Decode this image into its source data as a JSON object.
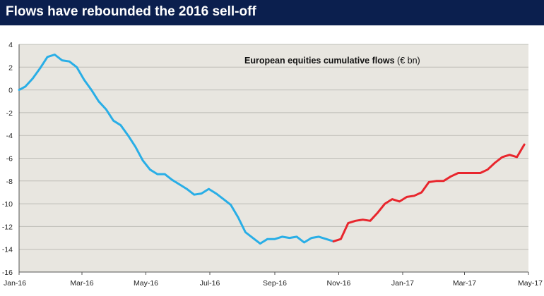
{
  "header": {
    "title": "Flows have rebounded the 2016 sell-off"
  },
  "colors": {
    "header_bg": "#0b1f4e",
    "plot_bg": "#e8e6e0",
    "gridline": "#bdbcb6",
    "series_2016": "#29aee6",
    "series_recovery": "#e8262d"
  },
  "chart_data": {
    "type": "line",
    "title": "",
    "xlabel": "",
    "ylabel": "",
    "annotation": {
      "bold": "European equities cumulative flows",
      "normal": " (€ bn)"
    },
    "ylim": [
      -16,
      4
    ],
    "yticks": [
      4,
      2,
      0,
      -2,
      -4,
      -6,
      -8,
      -10,
      -12,
      -14,
      -16
    ],
    "xlim": [
      "2016-01-01",
      "2017-05-01"
    ],
    "xticks": [
      {
        "date": "2016-01-01",
        "label": "Jan-16"
      },
      {
        "date": "2016-03-01",
        "label": "Mar-16"
      },
      {
        "date": "2016-05-01",
        "label": "May-16"
      },
      {
        "date": "2016-07-01",
        "label": "Jul-16"
      },
      {
        "date": "2016-09-01",
        "label": "Sep-16"
      },
      {
        "date": "2016-11-01",
        "label": "Nov-16"
      },
      {
        "date": "2017-01-01",
        "label": "Jan-17"
      },
      {
        "date": "2017-03-01",
        "label": "Mar-17"
      },
      {
        "date": "2017-05-01",
        "label": "May-17"
      }
    ],
    "grid": true,
    "series": [
      {
        "color": "#29aee6",
        "points": [
          [
            "2016-01-01",
            0.0
          ],
          [
            "2016-01-07",
            0.3
          ],
          [
            "2016-01-14",
            1.0
          ],
          [
            "2016-01-21",
            1.9
          ],
          [
            "2016-01-28",
            2.9
          ],
          [
            "2016-02-04",
            3.1
          ],
          [
            "2016-02-11",
            2.6
          ],
          [
            "2016-02-18",
            2.5
          ],
          [
            "2016-02-25",
            2.0
          ],
          [
            "2016-03-03",
            0.9
          ],
          [
            "2016-03-10",
            0.0
          ],
          [
            "2016-03-17",
            -1.0
          ],
          [
            "2016-03-24",
            -1.7
          ],
          [
            "2016-03-31",
            -2.7
          ],
          [
            "2016-04-07",
            -3.1
          ],
          [
            "2016-04-14",
            -4.0
          ],
          [
            "2016-04-21",
            -5.0
          ],
          [
            "2016-04-28",
            -6.2
          ],
          [
            "2016-05-05",
            -7.0
          ],
          [
            "2016-05-12",
            -7.4
          ],
          [
            "2016-05-19",
            -7.4
          ],
          [
            "2016-05-26",
            -7.9
          ],
          [
            "2016-06-02",
            -8.3
          ],
          [
            "2016-06-09",
            -8.7
          ],
          [
            "2016-06-16",
            -9.2
          ],
          [
            "2016-06-23",
            -9.1
          ],
          [
            "2016-06-30",
            -8.7
          ],
          [
            "2016-07-07",
            -9.1
          ],
          [
            "2016-07-14",
            -9.6
          ],
          [
            "2016-07-21",
            -10.1
          ],
          [
            "2016-07-28",
            -11.2
          ],
          [
            "2016-08-04",
            -12.5
          ],
          [
            "2016-08-11",
            -13.0
          ],
          [
            "2016-08-18",
            -13.5
          ],
          [
            "2016-08-25",
            -13.1
          ],
          [
            "2016-09-01",
            -13.1
          ],
          [
            "2016-09-08",
            -12.9
          ],
          [
            "2016-09-15",
            -13.0
          ],
          [
            "2016-09-22",
            -12.9
          ],
          [
            "2016-09-29",
            -13.4
          ],
          [
            "2016-10-06",
            -13.0
          ],
          [
            "2016-10-13",
            -12.9
          ],
          [
            "2016-10-20",
            -13.1
          ],
          [
            "2016-10-27",
            -13.3
          ]
        ]
      },
      {
        "color": "#e8262d",
        "points": [
          [
            "2016-10-27",
            -13.3
          ],
          [
            "2016-11-03",
            -13.1
          ],
          [
            "2016-11-10",
            -11.7
          ],
          [
            "2016-11-17",
            -11.5
          ],
          [
            "2016-11-24",
            -11.4
          ],
          [
            "2016-12-01",
            -11.5
          ],
          [
            "2016-12-08",
            -10.8
          ],
          [
            "2016-12-15",
            -10.0
          ],
          [
            "2016-12-22",
            -9.6
          ],
          [
            "2016-12-29",
            -9.8
          ],
          [
            "2017-01-05",
            -9.4
          ],
          [
            "2017-01-12",
            -9.3
          ],
          [
            "2017-01-19",
            -9.0
          ],
          [
            "2017-01-26",
            -8.1
          ],
          [
            "2017-02-02",
            -8.0
          ],
          [
            "2017-02-09",
            -8.0
          ],
          [
            "2017-02-16",
            -7.6
          ],
          [
            "2017-02-23",
            -7.3
          ],
          [
            "2017-03-02",
            -7.3
          ],
          [
            "2017-03-09",
            -7.3
          ],
          [
            "2017-03-16",
            -7.3
          ],
          [
            "2017-03-23",
            -7.0
          ],
          [
            "2017-03-30",
            -6.4
          ],
          [
            "2017-04-06",
            -5.9
          ],
          [
            "2017-04-13",
            -5.7
          ],
          [
            "2017-04-20",
            -5.9
          ],
          [
            "2017-04-27",
            -4.8
          ]
        ]
      }
    ]
  }
}
